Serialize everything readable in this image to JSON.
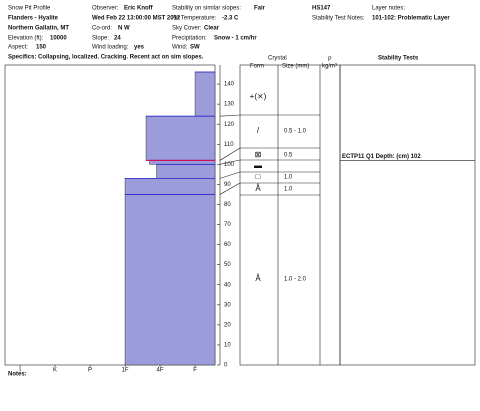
{
  "header": {
    "title": "Snow Pit Profile",
    "location": "Flanders - Hyalite",
    "range": "Northern Gallatin, MT",
    "elevation_label": "Elevation (ft):",
    "elevation": "10000",
    "aspect_label": "Aspect:",
    "aspect": "150",
    "specifics": "Specifics: Collapsing, localized. Cracking. Recent act on sim slopes.",
    "observer_label": "Observer:",
    "observer": "Eric Knoff",
    "date": "Wed Feb 22 13:00:00 MST 2012",
    "coord_label": "Co-ord:",
    "coord": "N W",
    "slope_label": "Slope:",
    "slope": "24",
    "wind_loading_label": "Wind loading:",
    "wind_loading": "yes",
    "stability_label": "Stability on similar slopes:",
    "stability": "Fair",
    "air_temp_label": "Air Temperature:",
    "air_temp": "-2.3 C",
    "sky_label": "Sky Cover:",
    "sky": "Clear",
    "precip_label": "Precipitation:",
    "precip": "Snow - 1 cm/hr",
    "wind_label": "Wind:",
    "wind": "SW",
    "hs": "HS147",
    "test_notes_label": "Stability Test Notes:",
    "layer_notes_label": "Layer notes:",
    "layer_notes": "101-102: Problematic Layer"
  },
  "chart_data": {
    "type": "snow-profile",
    "ylim": [
      0,
      149.5
    ],
    "yticks": [
      0,
      10,
      20,
      30,
      40,
      50,
      60,
      70,
      80,
      90,
      100,
      110,
      120,
      130,
      140
    ],
    "xlim": [
      0.43,
      6.43
    ],
    "xticks": [
      {
        "value": 6,
        "label": "I"
      },
      {
        "value": 5,
        "label": "K"
      },
      {
        "value": 4,
        "label": "P"
      },
      {
        "value": 3,
        "label": "1F"
      },
      {
        "value": 2,
        "label": "4F"
      },
      {
        "value": 1,
        "label": "F"
      }
    ],
    "layers": {
      "top": [
        146,
        124,
        102,
        100,
        93,
        85
      ],
      "bottom": [
        124,
        102,
        100,
        93,
        85,
        0
      ],
      "hardness": [
        1,
        2.4,
        2.3,
        2.1,
        3,
        3
      ]
    },
    "color": "#9c9cda",
    "edge_color": "#2a2ad6",
    "weak_color": "#e0004c"
  },
  "crystal_table": {
    "crystal": "Crystal",
    "form": "Form",
    "size": "Size (mm)",
    "rho": "ρ",
    "rho_unit": "kg/m³",
    "tests": "Stability Tests",
    "rows": [
      {
        "form": "+(⨯)"
      },
      {
        "form": "/",
        "size": "0.5 - 1.0"
      },
      {
        "form": "⊠",
        "size": "0.5"
      },
      {
        "form": "▬"
      },
      {
        "form": "□",
        "size": "1.0"
      },
      {
        "form": "Å",
        "size": "1.0"
      },
      {
        "form": "Å",
        "size": "1.0 - 2.0"
      }
    ]
  },
  "stability_tests": [
    {
      "text": "ECTP11 Q1 Depth: (cm) 102",
      "depth": 102
    }
  ],
  "notes": "Notes:"
}
